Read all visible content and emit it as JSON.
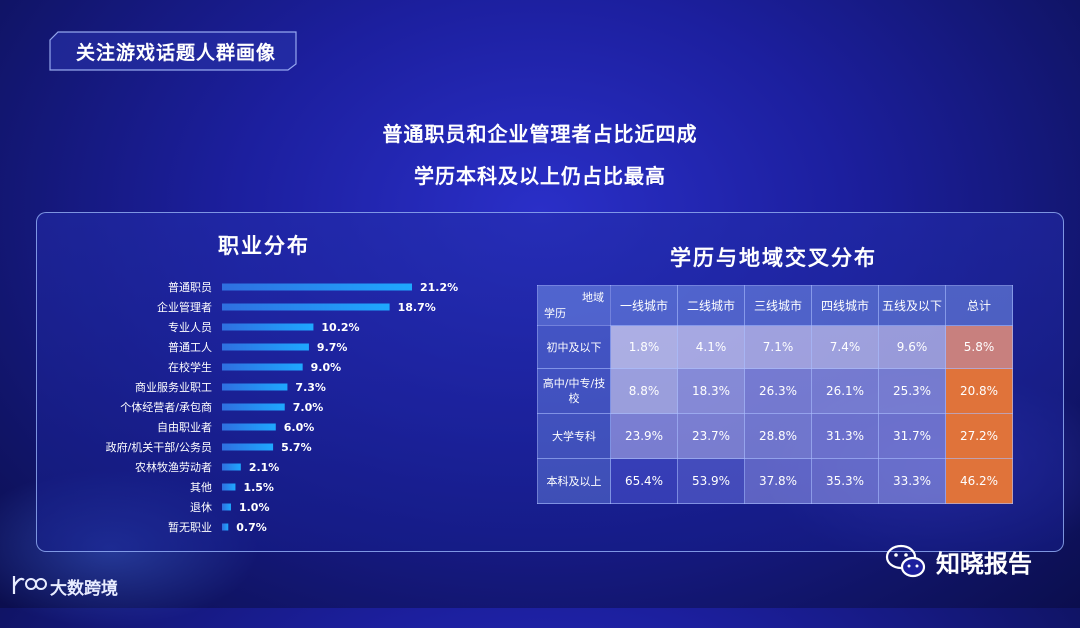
{
  "section": {
    "title": "关注游戏话题人群画像"
  },
  "headline": {
    "line1": "普通职员和企业管理者占比近四成",
    "line2": "学历本科及以上仍占比最高"
  },
  "chart_data": [
    {
      "type": "bar",
      "title": "职业分布",
      "categories": [
        "普通职员",
        "企业管理者",
        "专业人员",
        "普通工人",
        "在校学生",
        "商业服务业职工",
        "个体经营者/承包商",
        "自由职业者",
        "政府/机关干部/公务员",
        "农林牧渔劳动者",
        "其他",
        "退休",
        "暂无职业"
      ],
      "values": [
        21.2,
        18.7,
        10.2,
        9.7,
        9.0,
        7.3,
        7.0,
        6.0,
        5.7,
        2.1,
        1.5,
        1.0,
        0.7
      ],
      "value_labels": [
        "21.2%",
        "18.7%",
        "10.2%",
        "9.7%",
        "9.0%",
        "7.3%",
        "7.0%",
        "6.0%",
        "5.7%",
        "2.1%",
        "1.5%",
        "1.0%",
        "0.7%"
      ],
      "orientation": "horizontal",
      "bar_color": "#1ea8ff"
    },
    {
      "type": "table",
      "title": "学历与地域交叉分布",
      "corner": {
        "top_right": "地域",
        "bottom_left": "学历"
      },
      "columns": [
        "一线城市",
        "二线城市",
        "三线城市",
        "四线城市",
        "五线及以下",
        "总计"
      ],
      "rows": [
        {
          "label": "初中及以下",
          "values": [
            "1.8%",
            "4.1%",
            "7.1%",
            "7.4%",
            "9.6%",
            "5.8%"
          ]
        },
        {
          "label": "高中/中专/技校",
          "values": [
            "8.8%",
            "18.3%",
            "26.3%",
            "26.1%",
            "25.3%",
            "20.8%"
          ]
        },
        {
          "label": "大学专科",
          "values": [
            "23.9%",
            "23.7%",
            "28.8%",
            "31.3%",
            "31.7%",
            "27.2%"
          ]
        },
        {
          "label": "本科及以上",
          "values": [
            "65.4%",
            "53.9%",
            "37.8%",
            "35.3%",
            "33.3%",
            "46.2%"
          ]
        }
      ],
      "total_colors": [
        "#c8807e",
        "#e0733a",
        "#e0733a",
        "#e0733a"
      ]
    }
  ],
  "branding": {
    "right": "知晓报告",
    "left": "大数跨境"
  }
}
